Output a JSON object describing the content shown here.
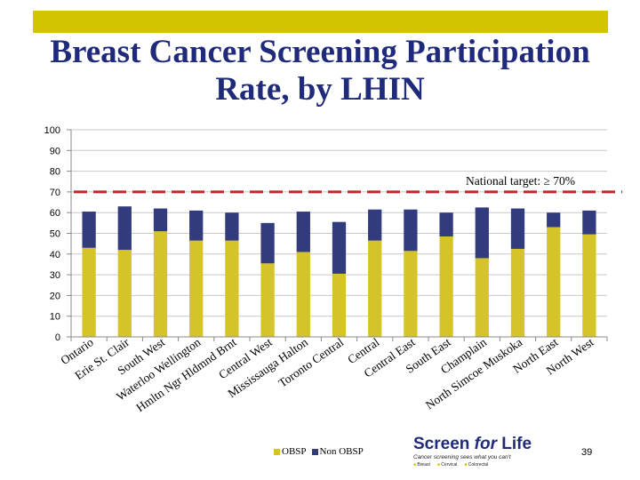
{
  "slide": {
    "title_line1": "Breast Cancer Screening Participation",
    "title_line2": "Rate, by LHIN",
    "page_number": "39"
  },
  "colors": {
    "accent_bar": "#d4c400",
    "title": "#1f2a7a",
    "obsp": "#d4c429",
    "non_obsp": "#333b7f",
    "target_line": "#c0272d"
  },
  "chart_data": {
    "type": "bar",
    "stacked": true,
    "categories": [
      "Ontario",
      "Erie St. Clair",
      "South West",
      "Waterloo Wellington",
      "Hmltn Ngr Hldmnd Brnt",
      "Central West",
      "Mississauga Halton",
      "Toronto Central",
      "Central",
      "Central East",
      "South East",
      "Champlain",
      "North Simcoe Muskoka",
      "North East",
      "North West"
    ],
    "series": [
      {
        "name": "OBSP",
        "values": [
          43,
          42,
          51,
          46.5,
          46.5,
          35.5,
          41,
          30.5,
          46.5,
          41.5,
          48.5,
          38,
          42.5,
          53,
          49.5
        ]
      },
      {
        "name": "Non OBSP",
        "values": [
          17.5,
          21,
          11,
          14.5,
          13.5,
          19.5,
          19.5,
          25,
          15,
          20,
          11.5,
          24.5,
          19.5,
          7,
          11.5
        ]
      }
    ],
    "ylim": [
      0,
      100
    ],
    "yticks": [
      0,
      10,
      20,
      30,
      40,
      50,
      60,
      70,
      80,
      90,
      100
    ],
    "target": {
      "value": 70,
      "label": "National target: ≥ 70%"
    },
    "legend": [
      "OBSP",
      "Non OBSP"
    ],
    "legend_position": "bottom"
  },
  "logo": {
    "main_a": "Screen ",
    "main_b": "for",
    "main_c": " Life",
    "tagline": "Cancer screening sees what you can't",
    "types": [
      "Breast",
      "Cervical",
      "Colorectal"
    ]
  }
}
